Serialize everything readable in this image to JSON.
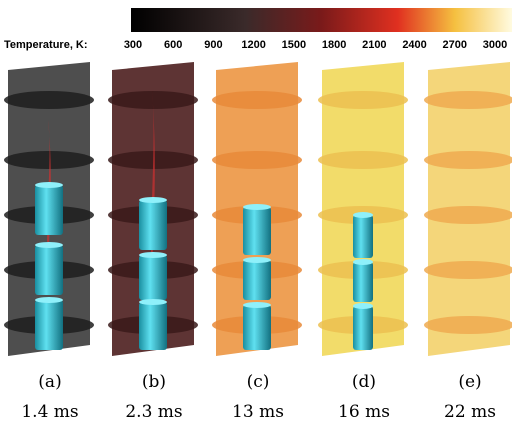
{
  "colorbar": {
    "label": "Temperature, K:",
    "ticks": [
      300,
      600,
      900,
      1200,
      1500,
      1800,
      2100,
      2400,
      2700,
      3000
    ]
  },
  "panels": [
    {
      "label": "(a)",
      "time": "1.4 ms"
    },
    {
      "label": "(b)",
      "time": "2.3 ms"
    },
    {
      "label": "(c)",
      "time": "13 ms"
    },
    {
      "label": "(d)",
      "time": "16 ms"
    },
    {
      "label": "(e)",
      "time": "22 ms"
    }
  ]
}
